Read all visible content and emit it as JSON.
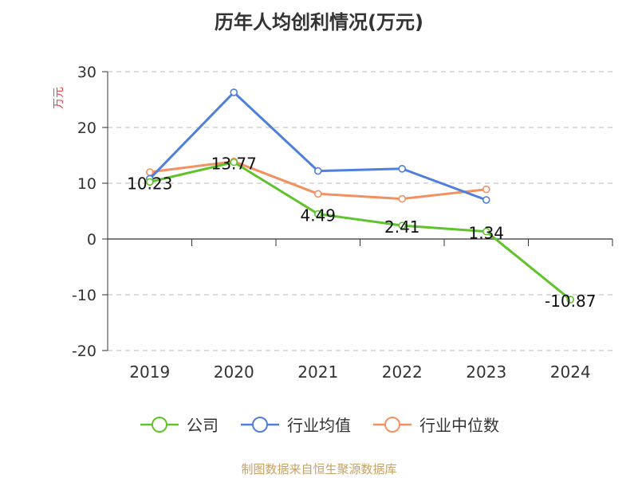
{
  "chart_data": {
    "type": "line",
    "title": "历年人均创利情况(万元)",
    "ylabel": "万元",
    "categories": [
      "2019",
      "2020",
      "2021",
      "2022",
      "2023",
      "2024"
    ],
    "ylim": [
      -20,
      30
    ],
    "yticks": [
      30,
      20,
      10,
      0,
      -10,
      -20
    ],
    "grid": true,
    "legend_position": "bottom",
    "series": [
      {
        "name": "公司",
        "color": "#5fc42b",
        "values": [
          10.23,
          13.77,
          4.49,
          2.41,
          1.34,
          -10.87
        ],
        "labels": [
          "10.23",
          "13.77",
          "4.49",
          "2.41",
          "1.34",
          "-10.87"
        ]
      },
      {
        "name": "行业均值",
        "color": "#4f7fdc",
        "values": [
          10.8,
          26.3,
          12.2,
          12.6,
          7.0,
          null
        ]
      },
      {
        "name": "行业中位数",
        "color": "#f39060",
        "values": [
          12.0,
          13.9,
          8.1,
          7.2,
          8.9,
          null
        ]
      }
    ]
  },
  "source": "制图数据来自恒生聚源数据库"
}
